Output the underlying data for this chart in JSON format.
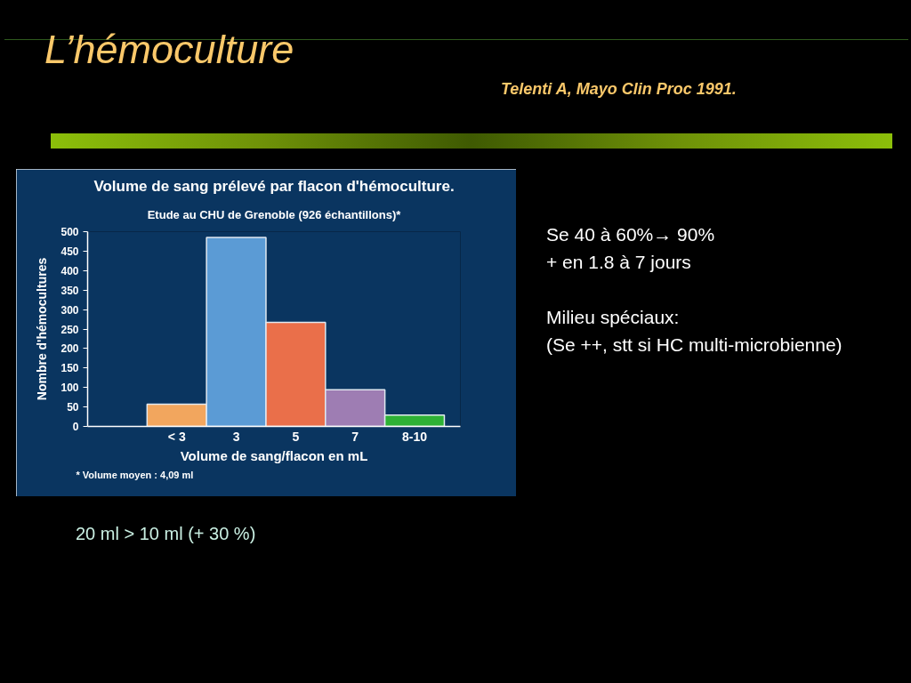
{
  "chart_data": {
    "type": "bar",
    "title": "Volume de sang prélevé par flacon d'hémoculture.",
    "subtitle": "Etude au CHU de Grenoble (926 échantillons)*",
    "xlabel": "Volume de sang/flacon en mL",
    "ylabel": "Nombre d'hémocultures",
    "categories": [
      "< 3",
      "3",
      "5",
      "7",
      "8-10"
    ],
    "values": [
      57,
      485,
      267,
      94,
      29
    ],
    "colors": [
      "#f2a65e",
      "#5b9bd5",
      "#ea6f4a",
      "#9e7db3",
      "#2eb135"
    ],
    "ylim": [
      0,
      500
    ],
    "yticks": [
      0,
      50,
      100,
      150,
      200,
      250,
      300,
      350,
      400,
      450,
      500
    ],
    "grid": false,
    "annotations": [
      "L’hémoculture",
      "Telenti A, Mayo Clin Proc 1991.",
      "Se 40 à 60%→ 90%\n+ en 1.8 à 7 jours\n\nMilieu spéciaux:\n(Se ++, stt si HC multi-microbienne)",
      "* Volume moyen : 4,09 ml",
      "20 ml > 10 ml (+ 30 %)"
    ]
  }
}
